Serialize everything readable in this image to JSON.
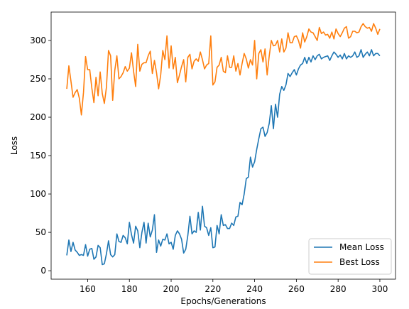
{
  "chart_data": {
    "type": "line",
    "title": "",
    "xlabel": "Epochs/Generations",
    "ylabel": "Loss",
    "xlim": [
      142.5,
      307.5
    ],
    "ylim": [
      -11,
      337
    ],
    "x_start": 150,
    "x_step": 1,
    "xticks": [
      160,
      180,
      200,
      220,
      240,
      260,
      280,
      300
    ],
    "yticks": [
      0,
      50,
      100,
      150,
      200,
      250,
      300
    ],
    "grid": false,
    "legend_position": "lower-right",
    "series": [
      {
        "name": "Mean Loss",
        "color": "#1f77b4",
        "values": [
          20,
          40,
          25,
          37,
          27,
          24,
          20,
          21,
          20,
          34,
          19,
          28,
          29,
          15,
          18,
          33,
          30,
          8,
          9,
          22,
          39,
          21,
          18,
          21,
          48,
          38,
          37,
          46,
          43,
          35,
          63,
          47,
          36,
          58,
          52,
          30,
          50,
          63,
          36,
          62,
          44,
          53,
          73,
          24,
          40,
          32,
          41,
          40,
          48,
          35,
          37,
          28,
          46,
          52,
          48,
          41,
          23,
          28,
          46,
          71,
          48,
          52,
          50,
          76,
          53,
          84,
          58,
          56,
          46,
          56,
          30,
          31,
          59,
          48,
          73,
          59,
          60,
          55,
          55,
          62,
          59,
          70,
          71,
          89,
          86,
          100,
          120,
          122,
          148,
          135,
          142,
          158,
          172,
          185,
          187,
          175,
          180,
          192,
          215,
          185,
          217,
          200,
          230,
          240,
          235,
          242,
          257,
          253,
          258,
          262,
          255,
          263,
          268,
          270,
          278,
          270,
          278,
          272,
          280,
          275,
          280,
          282,
          276,
          278,
          279,
          280,
          274,
          280,
          285,
          282,
          278,
          281,
          276,
          283,
          276,
          280,
          278,
          280,
          285,
          278,
          280,
          288,
          278,
          282,
          285,
          280,
          288,
          280,
          283,
          283,
          280
        ]
      },
      {
        "name": "Best Loss",
        "color": "#ff7f0e",
        "values": [
          237,
          267,
          247,
          226,
          232,
          236,
          225,
          203,
          232,
          279,
          262,
          262,
          238,
          219,
          252,
          228,
          259,
          231,
          218,
          239,
          287,
          280,
          222,
          261,
          280,
          250,
          253,
          258,
          266,
          260,
          264,
          284,
          260,
          240,
          295,
          260,
          269,
          271,
          271,
          280,
          286,
          257,
          274,
          258,
          237,
          255,
          287,
          275,
          306,
          264,
          293,
          263,
          278,
          245,
          255,
          266,
          275,
          246,
          278,
          282,
          263,
          273,
          276,
          273,
          285,
          275,
          263,
          268,
          270,
          306,
          242,
          246,
          265,
          268,
          278,
          260,
          258,
          280,
          265,
          265,
          280,
          260,
          270,
          255,
          270,
          283,
          276,
          264,
          275,
          268,
          300,
          250,
          283,
          288,
          272,
          289,
          255,
          280,
          300,
          293,
          294,
          300,
          285,
          302,
          285,
          290,
          310,
          297,
          297,
          305,
          306,
          300,
          290,
          310,
          298,
          305,
          315,
          311,
          310,
          305,
          300,
          317,
          309,
          311,
          307,
          308,
          303,
          311,
          302,
          315,
          309,
          305,
          310,
          316,
          318,
          303,
          305,
          312,
          312,
          310,
          311,
          318,
          322,
          318,
          316,
          317,
          312,
          322,
          316,
          308,
          315
        ]
      }
    ]
  }
}
